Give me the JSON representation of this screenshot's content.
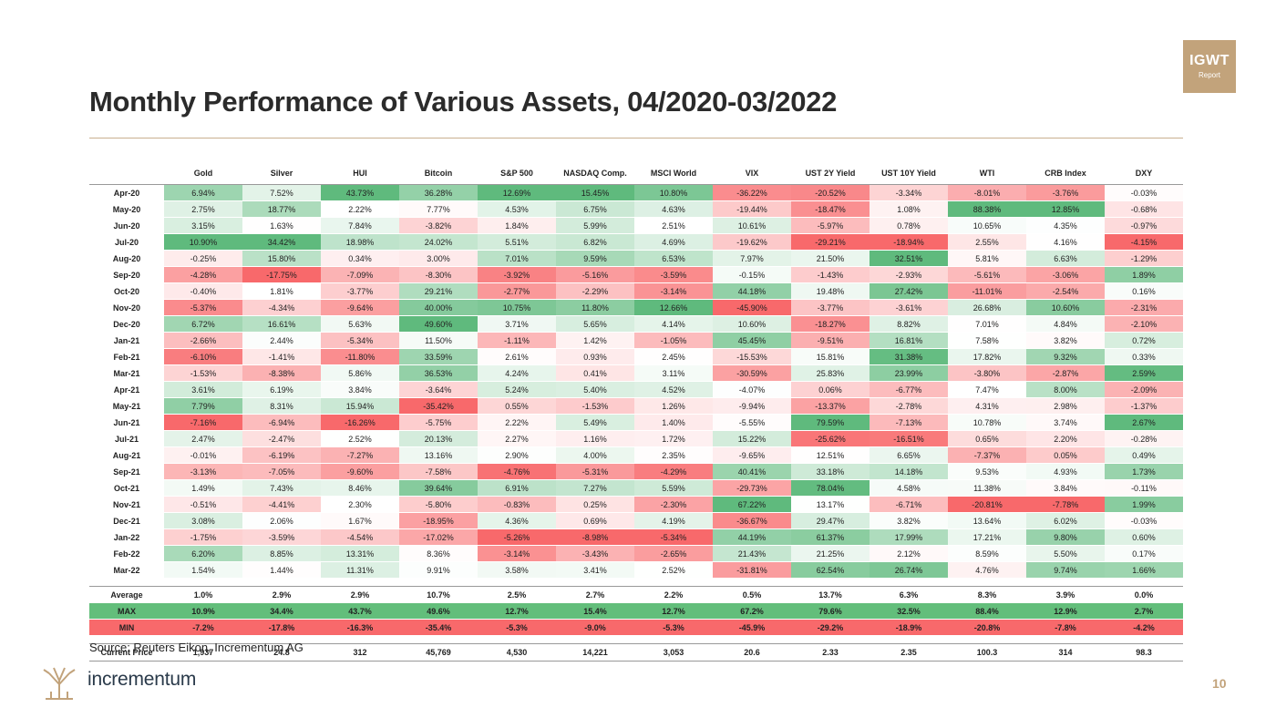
{
  "badge": {
    "main": "IGWT",
    "sub": "Report"
  },
  "title": "Monthly Performance of Various Assets, 04/2020-03/2022",
  "columns": [
    "Gold",
    "Silver",
    "HUI",
    "Bitcoin",
    "S&P 500",
    "NASDAQ Comp.",
    "MSCI World",
    "VIX",
    "UST 2Y Yield",
    "UST 10Y Yield",
    "WTI",
    "CRB Index",
    "DXY"
  ],
  "rows": [
    {
      "label": "Apr-20",
      "values": [
        "6.94%",
        "7.52%",
        "43.73%",
        "36.28%",
        "12.69%",
        "15.45%",
        "10.80%",
        "-36.22%",
        "-20.52%",
        "-3.34%",
        "-8.01%",
        "-3.76%",
        "-0.03%"
      ]
    },
    {
      "label": "May-20",
      "values": [
        "2.75%",
        "18.77%",
        "2.22%",
        "7.77%",
        "4.53%",
        "6.75%",
        "4.63%",
        "-19.44%",
        "-18.47%",
        "1.08%",
        "88.38%",
        "12.85%",
        "-0.68%"
      ]
    },
    {
      "label": "Jun-20",
      "values": [
        "3.15%",
        "1.63%",
        "7.84%",
        "-3.82%",
        "1.84%",
        "5.99%",
        "2.51%",
        "10.61%",
        "-5.97%",
        "0.78%",
        "10.65%",
        "4.35%",
        "-0.97%"
      ]
    },
    {
      "label": "Jul-20",
      "values": [
        "10.90%",
        "34.42%",
        "18.98%",
        "24.02%",
        "5.51%",
        "6.82%",
        "4.69%",
        "-19.62%",
        "-29.21%",
        "-18.94%",
        "2.55%",
        "4.16%",
        "-4.15%"
      ]
    },
    {
      "label": "Aug-20",
      "values": [
        "-0.25%",
        "15.80%",
        "0.34%",
        "3.00%",
        "7.01%",
        "9.59%",
        "6.53%",
        "7.97%",
        "21.50%",
        "32.51%",
        "5.81%",
        "6.63%",
        "-1.29%"
      ]
    },
    {
      "label": "Sep-20",
      "values": [
        "-4.28%",
        "-17.75%",
        "-7.09%",
        "-8.30%",
        "-3.92%",
        "-5.16%",
        "-3.59%",
        "-0.15%",
        "-1.43%",
        "-2.93%",
        "-5.61%",
        "-3.06%",
        "1.89%"
      ]
    },
    {
      "label": "Oct-20",
      "values": [
        "-0.40%",
        "1.81%",
        "-3.77%",
        "29.21%",
        "-2.77%",
        "-2.29%",
        "-3.14%",
        "44.18%",
        "19.48%",
        "27.42%",
        "-11.01%",
        "-2.54%",
        "0.16%"
      ]
    },
    {
      "label": "Nov-20",
      "values": [
        "-5.37%",
        "-4.34%",
        "-9.64%",
        "40.00%",
        "10.75%",
        "11.80%",
        "12.66%",
        "-45.90%",
        "-3.77%",
        "-3.61%",
        "26.68%",
        "10.60%",
        "-2.31%"
      ]
    },
    {
      "label": "Dec-20",
      "values": [
        "6.72%",
        "16.61%",
        "5.63%",
        "49.60%",
        "3.71%",
        "5.65%",
        "4.14%",
        "10.60%",
        "-18.27%",
        "8.82%",
        "7.01%",
        "4.84%",
        "-2.10%"
      ]
    },
    {
      "label": "Jan-21",
      "values": [
        "-2.66%",
        "2.44%",
        "-5.34%",
        "11.50%",
        "-1.11%",
        "1.42%",
        "-1.05%",
        "45.45%",
        "-9.51%",
        "16.81%",
        "7.58%",
        "3.82%",
        "0.72%"
      ]
    },
    {
      "label": "Feb-21",
      "values": [
        "-6.10%",
        "-1.41%",
        "-11.80%",
        "33.59%",
        "2.61%",
        "0.93%",
        "2.45%",
        "-15.53%",
        "15.81%",
        "31.38%",
        "17.82%",
        "9.32%",
        "0.33%"
      ]
    },
    {
      "label": "Mar-21",
      "values": [
        "-1.53%",
        "-8.38%",
        "5.86%",
        "36.53%",
        "4.24%",
        "0.41%",
        "3.11%",
        "-30.59%",
        "25.83%",
        "23.99%",
        "-3.80%",
        "-2.87%",
        "2.59%"
      ]
    },
    {
      "label": "Apr-21",
      "values": [
        "3.61%",
        "6.19%",
        "3.84%",
        "-3.64%",
        "5.24%",
        "5.40%",
        "4.52%",
        "-4.07%",
        "0.06%",
        "-6.77%",
        "7.47%",
        "8.00%",
        "-2.09%"
      ]
    },
    {
      "label": "May-21",
      "values": [
        "7.79%",
        "8.31%",
        "15.94%",
        "-35.42%",
        "0.55%",
        "-1.53%",
        "1.26%",
        "-9.94%",
        "-13.37%",
        "-2.78%",
        "4.31%",
        "2.98%",
        "-1.37%"
      ]
    },
    {
      "label": "Jun-21",
      "values": [
        "-7.16%",
        "-6.94%",
        "-16.26%",
        "-5.75%",
        "2.22%",
        "5.49%",
        "1.40%",
        "-5.55%",
        "79.59%",
        "-7.13%",
        "10.78%",
        "3.74%",
        "2.67%"
      ]
    },
    {
      "label": "Jul-21",
      "values": [
        "2.47%",
        "-2.47%",
        "2.52%",
        "20.13%",
        "2.27%",
        "1.16%",
        "1.72%",
        "15.22%",
        "-25.62%",
        "-16.51%",
        "0.65%",
        "2.20%",
        "-0.28%"
      ]
    },
    {
      "label": "Aug-21",
      "values": [
        "-0.01%",
        "-6.19%",
        "-7.27%",
        "13.16%",
        "2.90%",
        "4.00%",
        "2.35%",
        "-9.65%",
        "12.51%",
        "6.65%",
        "-7.37%",
        "0.05%",
        "0.49%"
      ]
    },
    {
      "label": "Sep-21",
      "values": [
        "-3.13%",
        "-7.05%",
        "-9.60%",
        "-7.58%",
        "-4.76%",
        "-5.31%",
        "-4.29%",
        "40.41%",
        "33.18%",
        "14.18%",
        "9.53%",
        "4.93%",
        "1.73%"
      ]
    },
    {
      "label": "Oct-21",
      "values": [
        "1.49%",
        "7.43%",
        "8.46%",
        "39.64%",
        "6.91%",
        "7.27%",
        "5.59%",
        "-29.73%",
        "78.04%",
        "4.58%",
        "11.38%",
        "3.84%",
        "-0.11%"
      ]
    },
    {
      "label": "Nov-21",
      "values": [
        "-0.51%",
        "-4.41%",
        "2.30%",
        "-5.80%",
        "-0.83%",
        "0.25%",
        "-2.30%",
        "67.22%",
        "13.17%",
        "-6.71%",
        "-20.81%",
        "-7.78%",
        "1.99%"
      ]
    },
    {
      "label": "Dec-21",
      "values": [
        "3.08%",
        "2.06%",
        "1.67%",
        "-18.95%",
        "4.36%",
        "0.69%",
        "4.19%",
        "-36.67%",
        "29.47%",
        "3.82%",
        "13.64%",
        "6.02%",
        "-0.03%"
      ]
    },
    {
      "label": "Jan-22",
      "values": [
        "-1.75%",
        "-3.59%",
        "-4.54%",
        "-17.02%",
        "-5.26%",
        "-8.98%",
        "-5.34%",
        "44.19%",
        "61.37%",
        "17.99%",
        "17.21%",
        "9.80%",
        "0.60%"
      ]
    },
    {
      "label": "Feb-22",
      "values": [
        "6.20%",
        "8.85%",
        "13.31%",
        "8.36%",
        "-3.14%",
        "-3.43%",
        "-2.65%",
        "21.43%",
        "21.25%",
        "2.12%",
        "8.59%",
        "5.50%",
        "0.17%"
      ]
    },
    {
      "label": "Mar-22",
      "values": [
        "1.54%",
        "1.44%",
        "11.31%",
        "9.91%",
        "3.58%",
        "3.41%",
        "2.52%",
        "-31.81%",
        "62.54%",
        "26.74%",
        "4.76%",
        "9.74%",
        "1.66%"
      ]
    }
  ],
  "stats": [
    {
      "label": "Average",
      "values": [
        "1.0%",
        "2.9%",
        "2.9%",
        "10.7%",
        "2.5%",
        "2.7%",
        "2.2%",
        "0.5%",
        "13.7%",
        "6.3%",
        "8.3%",
        "3.9%",
        "0.0%"
      ]
    },
    {
      "label": "MAX",
      "values": [
        "10.9%",
        "34.4%",
        "43.7%",
        "49.6%",
        "12.7%",
        "15.4%",
        "12.7%",
        "67.2%",
        "79.6%",
        "32.5%",
        "88.4%",
        "12.9%",
        "2.7%"
      ]
    },
    {
      "label": "MIN",
      "values": [
        "-7.2%",
        "-17.8%",
        "-16.3%",
        "-35.4%",
        "-5.3%",
        "-9.0%",
        "-5.3%",
        "-45.9%",
        "-29.2%",
        "-18.9%",
        "-20.8%",
        "-7.8%",
        "-4.2%"
      ]
    }
  ],
  "current_price": {
    "label": "Current Price",
    "values": [
      "1,937",
      "24.8",
      "312",
      "45,769",
      "4,530",
      "14,221",
      "3,053",
      "20.6",
      "2.33",
      "2.35",
      "100.3",
      "314",
      "98.3"
    ]
  },
  "source": "Source: Reuters Eikon, Incrementum AG",
  "logo_text": "incrementum",
  "page_number": "10",
  "colors": {
    "accent": "#c2a37b",
    "pos_max": "#5fba7d",
    "neg_max": "#f8696b",
    "mid": "#ffffff",
    "max_row": "#63be7b",
    "min_row": "#f8696b"
  }
}
